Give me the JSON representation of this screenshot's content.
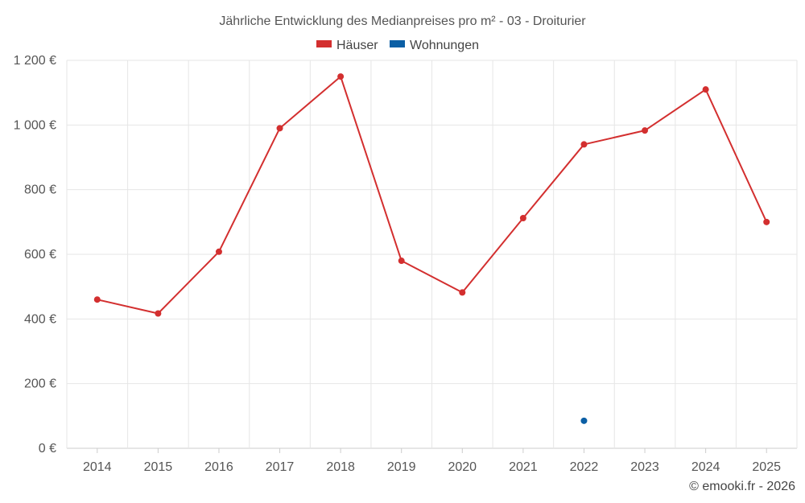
{
  "chart_data": {
    "type": "line",
    "title": "Jährliche Entwicklung des Medianpreises pro m² - 03 - Droiturier",
    "categories": [
      "2014",
      "2015",
      "2016",
      "2017",
      "2018",
      "2019",
      "2020",
      "2021",
      "2022",
      "2023",
      "2024",
      "2025"
    ],
    "series": [
      {
        "name": "Häuser",
        "color": "#d32f2f",
        "values": [
          460,
          417,
          608,
          990,
          1150,
          580,
          482,
          712,
          940,
          983,
          1110,
          700
        ]
      },
      {
        "name": "Wohnungen",
        "color": "#0b5fa5",
        "values": [
          null,
          null,
          null,
          null,
          null,
          null,
          null,
          null,
          85,
          null,
          null,
          null
        ]
      }
    ],
    "ylim": [
      0,
      1200
    ],
    "yticks": [
      0,
      200,
      400,
      600,
      800,
      1000,
      1200
    ],
    "ytick_labels": [
      "0 €",
      "200 €",
      "400 €",
      "600 €",
      "800 €",
      "1 000 €",
      "1 200 €"
    ],
    "grid": true,
    "legend": "top-center"
  },
  "credit": "© emooki.fr - 2026"
}
